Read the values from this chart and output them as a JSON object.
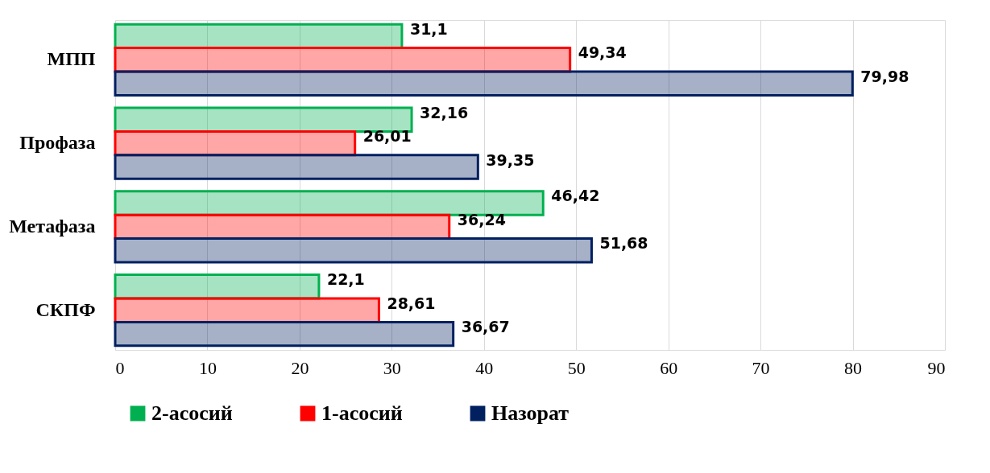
{
  "chart_data": {
    "type": "bar",
    "orientation": "horizontal",
    "categories": [
      "МПП",
      "Профаза",
      "Метафаза",
      "СКПФ"
    ],
    "series": [
      {
        "name": "2-асосий",
        "color": "#00b050",
        "values": [
          31.1,
          32.16,
          46.42,
          22.1
        ],
        "value_labels": [
          "31,1",
          "32,16",
          "46,42",
          "22,1"
        ]
      },
      {
        "name": "1-асосий",
        "color": "#ff0000",
        "values": [
          49.34,
          26.01,
          36.24,
          28.61
        ],
        "value_labels": [
          "49,34",
          "26,01",
          "36,24",
          "28,61"
        ]
      },
      {
        "name": "Назорат",
        "color": "#002060",
        "values": [
          79.98,
          39.35,
          51.68,
          36.67
        ],
        "value_labels": [
          "79,98",
          "39,35",
          "51,68",
          "36,67"
        ]
      }
    ],
    "xlim": [
      0,
      90
    ],
    "xticks": [
      0,
      10,
      20,
      30,
      40,
      50,
      60,
      70,
      80,
      90
    ],
    "grid": "x",
    "legend": "bottom"
  }
}
